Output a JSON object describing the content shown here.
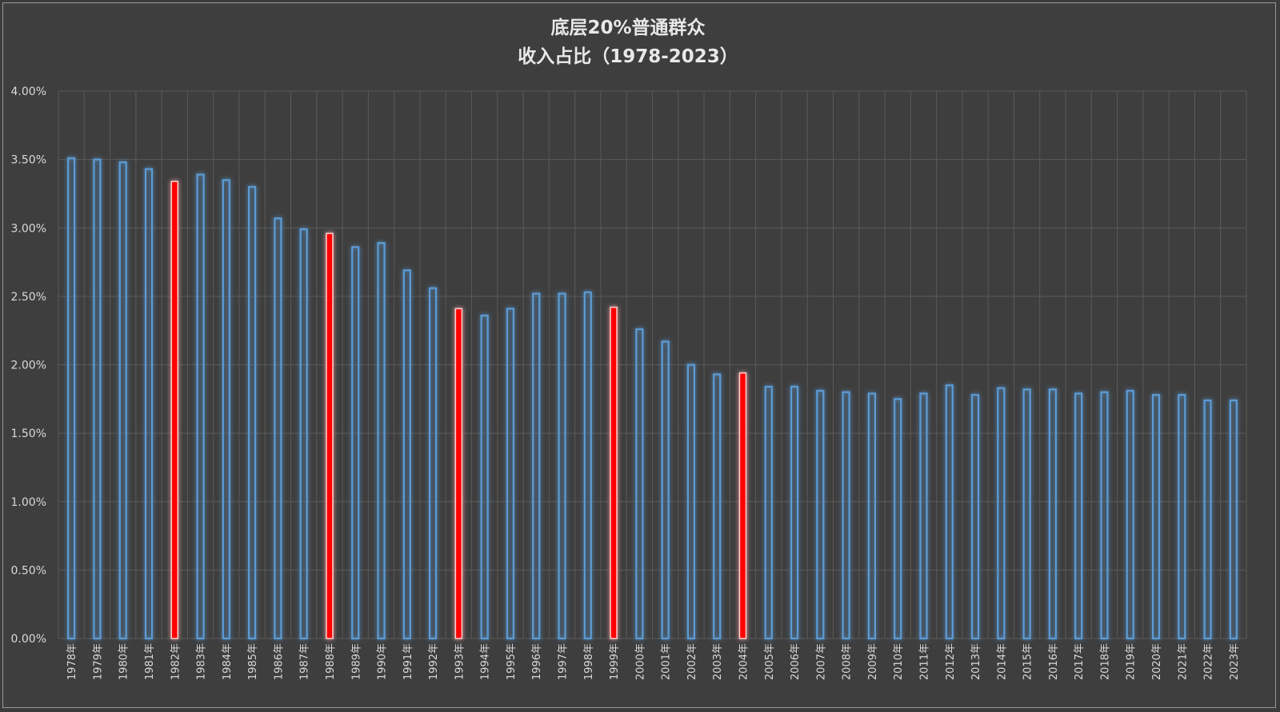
{
  "chart_data": {
    "type": "bar",
    "title": "底层20%普通群众",
    "subtitle": "收入占比（1978-2023）",
    "xlabel": "",
    "ylabel": "",
    "ylim": [
      0,
      4.0
    ],
    "y_ticks": [
      "0.00%",
      "0.50%",
      "1.00%",
      "1.50%",
      "2.00%",
      "2.50%",
      "3.00%",
      "3.50%",
      "4.00%"
    ],
    "grid": true,
    "legend": "none",
    "categories": [
      "1978年",
      "1979年",
      "1980年",
      "1981年",
      "1982年",
      "1983年",
      "1984年",
      "1985年",
      "1986年",
      "1987年",
      "1988年",
      "1989年",
      "1990年",
      "1991年",
      "1992年",
      "1993年",
      "1994年",
      "1995年",
      "1996年",
      "1997年",
      "1998年",
      "1999年",
      "2000年",
      "2001年",
      "2002年",
      "2003年",
      "2004年",
      "2005年",
      "2006年",
      "2007年",
      "2008年",
      "2009年",
      "2010年",
      "2011年",
      "2012年",
      "2013年",
      "2014年",
      "2015年",
      "2016年",
      "2017年",
      "2018年",
      "2019年",
      "2020年",
      "2021年",
      "2022年",
      "2023年"
    ],
    "values": [
      3.51,
      3.5,
      3.48,
      3.43,
      3.34,
      3.39,
      3.35,
      3.3,
      3.07,
      2.99,
      2.96,
      2.86,
      2.89,
      2.69,
      2.56,
      2.41,
      2.36,
      2.41,
      2.52,
      2.52,
      2.53,
      2.42,
      2.26,
      2.17,
      2.0,
      1.93,
      1.94,
      1.84,
      1.84,
      1.81,
      1.8,
      1.79,
      1.75,
      1.79,
      1.85,
      1.78,
      1.83,
      1.82,
      1.82,
      1.79,
      1.8,
      1.81,
      1.78,
      1.78,
      1.74,
      1.74
    ],
    "highlighted": [
      "1982年",
      "1988年",
      "1993年",
      "1999年",
      "2004年"
    ],
    "colors": {
      "bar": "#5b9bd5",
      "highlight": "#ff0000",
      "grid": "#5a5a5a",
      "background": "#3e3e3e"
    }
  }
}
